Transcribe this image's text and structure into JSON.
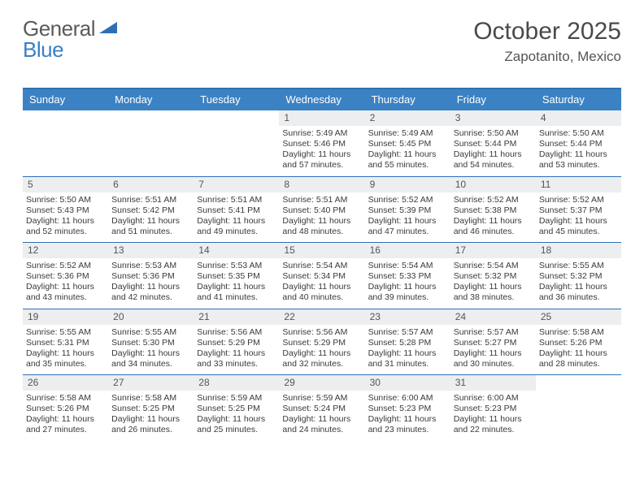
{
  "brand": {
    "word1": "General",
    "word2": "Blue"
  },
  "title": "October 2025",
  "location": "Zapotanito, Mexico",
  "colors": {
    "header_bg": "#3b82c4",
    "header_rule": "#2e6fb4",
    "daynum_bg": "#eceef0",
    "text": "#3a3a3a",
    "title_color": "#4a4a4a"
  },
  "day_header_fontsize": 13,
  "cell_fontsize": 10.5,
  "dows": [
    "Sunday",
    "Monday",
    "Tuesday",
    "Wednesday",
    "Thursday",
    "Friday",
    "Saturday"
  ],
  "weeks": [
    [
      {
        "n": "",
        "sr": "",
        "ss": "",
        "dl": ""
      },
      {
        "n": "",
        "sr": "",
        "ss": "",
        "dl": ""
      },
      {
        "n": "",
        "sr": "",
        "ss": "",
        "dl": ""
      },
      {
        "n": "1",
        "sr": "Sunrise: 5:49 AM",
        "ss": "Sunset: 5:46 PM",
        "dl": "Daylight: 11 hours and 57 minutes."
      },
      {
        "n": "2",
        "sr": "Sunrise: 5:49 AM",
        "ss": "Sunset: 5:45 PM",
        "dl": "Daylight: 11 hours and 55 minutes."
      },
      {
        "n": "3",
        "sr": "Sunrise: 5:50 AM",
        "ss": "Sunset: 5:44 PM",
        "dl": "Daylight: 11 hours and 54 minutes."
      },
      {
        "n": "4",
        "sr": "Sunrise: 5:50 AM",
        "ss": "Sunset: 5:44 PM",
        "dl": "Daylight: 11 hours and 53 minutes."
      }
    ],
    [
      {
        "n": "5",
        "sr": "Sunrise: 5:50 AM",
        "ss": "Sunset: 5:43 PM",
        "dl": "Daylight: 11 hours and 52 minutes."
      },
      {
        "n": "6",
        "sr": "Sunrise: 5:51 AM",
        "ss": "Sunset: 5:42 PM",
        "dl": "Daylight: 11 hours and 51 minutes."
      },
      {
        "n": "7",
        "sr": "Sunrise: 5:51 AM",
        "ss": "Sunset: 5:41 PM",
        "dl": "Daylight: 11 hours and 49 minutes."
      },
      {
        "n": "8",
        "sr": "Sunrise: 5:51 AM",
        "ss": "Sunset: 5:40 PM",
        "dl": "Daylight: 11 hours and 48 minutes."
      },
      {
        "n": "9",
        "sr": "Sunrise: 5:52 AM",
        "ss": "Sunset: 5:39 PM",
        "dl": "Daylight: 11 hours and 47 minutes."
      },
      {
        "n": "10",
        "sr": "Sunrise: 5:52 AM",
        "ss": "Sunset: 5:38 PM",
        "dl": "Daylight: 11 hours and 46 minutes."
      },
      {
        "n": "11",
        "sr": "Sunrise: 5:52 AM",
        "ss": "Sunset: 5:37 PM",
        "dl": "Daylight: 11 hours and 45 minutes."
      }
    ],
    [
      {
        "n": "12",
        "sr": "Sunrise: 5:52 AM",
        "ss": "Sunset: 5:36 PM",
        "dl": "Daylight: 11 hours and 43 minutes."
      },
      {
        "n": "13",
        "sr": "Sunrise: 5:53 AM",
        "ss": "Sunset: 5:36 PM",
        "dl": "Daylight: 11 hours and 42 minutes."
      },
      {
        "n": "14",
        "sr": "Sunrise: 5:53 AM",
        "ss": "Sunset: 5:35 PM",
        "dl": "Daylight: 11 hours and 41 minutes."
      },
      {
        "n": "15",
        "sr": "Sunrise: 5:54 AM",
        "ss": "Sunset: 5:34 PM",
        "dl": "Daylight: 11 hours and 40 minutes."
      },
      {
        "n": "16",
        "sr": "Sunrise: 5:54 AM",
        "ss": "Sunset: 5:33 PM",
        "dl": "Daylight: 11 hours and 39 minutes."
      },
      {
        "n": "17",
        "sr": "Sunrise: 5:54 AM",
        "ss": "Sunset: 5:32 PM",
        "dl": "Daylight: 11 hours and 38 minutes."
      },
      {
        "n": "18",
        "sr": "Sunrise: 5:55 AM",
        "ss": "Sunset: 5:32 PM",
        "dl": "Daylight: 11 hours and 36 minutes."
      }
    ],
    [
      {
        "n": "19",
        "sr": "Sunrise: 5:55 AM",
        "ss": "Sunset: 5:31 PM",
        "dl": "Daylight: 11 hours and 35 minutes."
      },
      {
        "n": "20",
        "sr": "Sunrise: 5:55 AM",
        "ss": "Sunset: 5:30 PM",
        "dl": "Daylight: 11 hours and 34 minutes."
      },
      {
        "n": "21",
        "sr": "Sunrise: 5:56 AM",
        "ss": "Sunset: 5:29 PM",
        "dl": "Daylight: 11 hours and 33 minutes."
      },
      {
        "n": "22",
        "sr": "Sunrise: 5:56 AM",
        "ss": "Sunset: 5:29 PM",
        "dl": "Daylight: 11 hours and 32 minutes."
      },
      {
        "n": "23",
        "sr": "Sunrise: 5:57 AM",
        "ss": "Sunset: 5:28 PM",
        "dl": "Daylight: 11 hours and 31 minutes."
      },
      {
        "n": "24",
        "sr": "Sunrise: 5:57 AM",
        "ss": "Sunset: 5:27 PM",
        "dl": "Daylight: 11 hours and 30 minutes."
      },
      {
        "n": "25",
        "sr": "Sunrise: 5:58 AM",
        "ss": "Sunset: 5:26 PM",
        "dl": "Daylight: 11 hours and 28 minutes."
      }
    ],
    [
      {
        "n": "26",
        "sr": "Sunrise: 5:58 AM",
        "ss": "Sunset: 5:26 PM",
        "dl": "Daylight: 11 hours and 27 minutes."
      },
      {
        "n": "27",
        "sr": "Sunrise: 5:58 AM",
        "ss": "Sunset: 5:25 PM",
        "dl": "Daylight: 11 hours and 26 minutes."
      },
      {
        "n": "28",
        "sr": "Sunrise: 5:59 AM",
        "ss": "Sunset: 5:25 PM",
        "dl": "Daylight: 11 hours and 25 minutes."
      },
      {
        "n": "29",
        "sr": "Sunrise: 5:59 AM",
        "ss": "Sunset: 5:24 PM",
        "dl": "Daylight: 11 hours and 24 minutes."
      },
      {
        "n": "30",
        "sr": "Sunrise: 6:00 AM",
        "ss": "Sunset: 5:23 PM",
        "dl": "Daylight: 11 hours and 23 minutes."
      },
      {
        "n": "31",
        "sr": "Sunrise: 6:00 AM",
        "ss": "Sunset: 5:23 PM",
        "dl": "Daylight: 11 hours and 22 minutes."
      },
      {
        "n": "",
        "sr": "",
        "ss": "",
        "dl": ""
      }
    ]
  ]
}
